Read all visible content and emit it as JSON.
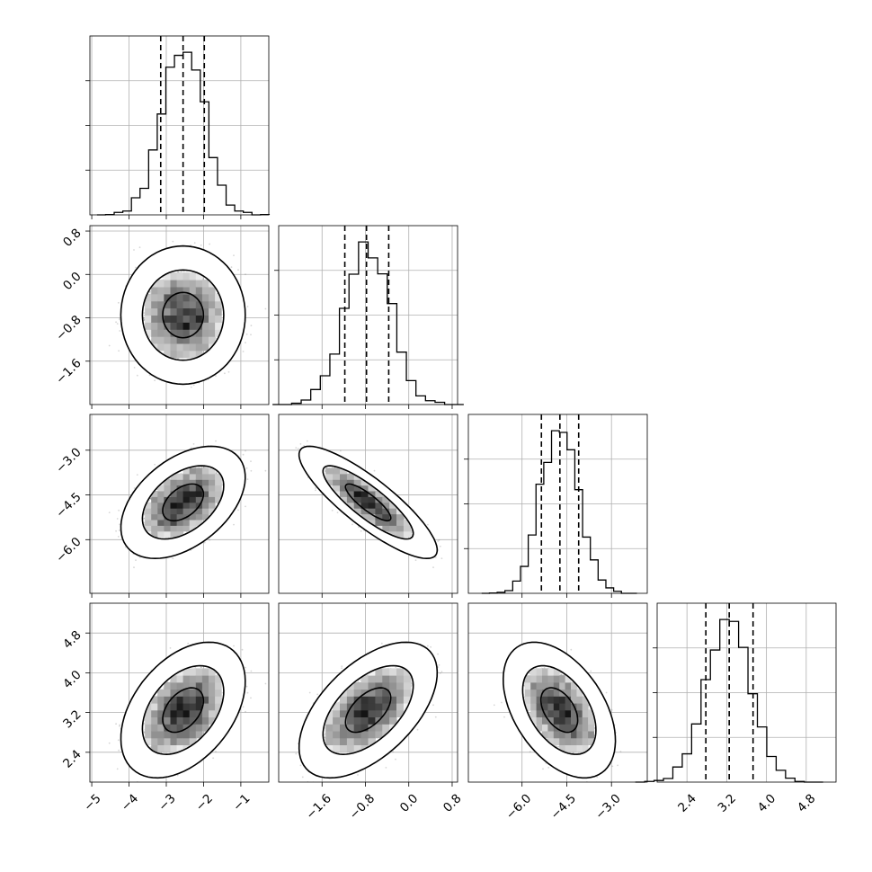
{
  "chart_data": {
    "type": "corner",
    "n_params": 4,
    "grid": true,
    "colors": {
      "line": "#000000",
      "grid": "#b0b0b0",
      "scatter": "#7a7a7a",
      "background": "#ffffff"
    },
    "params": [
      {
        "range": [
          -5.05,
          -0.25
        ],
        "ticks": [
          -5,
          -4,
          -3,
          -2,
          -1
        ],
        "tick_labels": [
          "−5",
          "−4",
          "−3",
          "−2",
          "−1"
        ],
        "mean": -2.55,
        "sd": 0.55,
        "quantiles": [
          -3.15,
          -2.55,
          -1.98
        ]
      },
      {
        "range": [
          -2.4,
          0.9
        ],
        "ticks": [
          -1.6,
          -0.8,
          0.0,
          0.8
        ],
        "tick_labels": [
          "−1.6",
          "−0.8",
          "0.0",
          "0.8"
        ],
        "mean": -0.75,
        "sd": 0.42,
        "quantiles": [
          -1.18,
          -0.78,
          -0.37
        ]
      },
      {
        "range": [
          -7.8,
          -1.8
        ],
        "ticks": [
          -6.0,
          -4.5,
          -3.0
        ],
        "tick_labels": [
          "−6.0",
          "−4.5",
          "−3.0"
        ],
        "mean": -4.75,
        "sd": 0.62,
        "quantiles": [
          -5.35,
          -4.73,
          -4.1
        ]
      },
      {
        "range": [
          1.8,
          5.4
        ],
        "ticks": [
          2.4,
          3.2,
          4.0,
          4.8
        ],
        "tick_labels": [
          "2.4",
          "3.2",
          "4.0",
          "4.8"
        ],
        "mean": 3.25,
        "sd": 0.45,
        "quantiles": [
          2.78,
          3.25,
          3.73
        ]
      }
    ],
    "correlations": {
      "1-0": 0.0,
      "2-0": 0.45,
      "2-1": -0.85,
      "3-0": 0.42,
      "3-1": 0.55,
      "3-2": -0.45
    },
    "histogram_bins": 20,
    "contour_levels": [
      0.39,
      0.86,
      0.99
    ]
  }
}
